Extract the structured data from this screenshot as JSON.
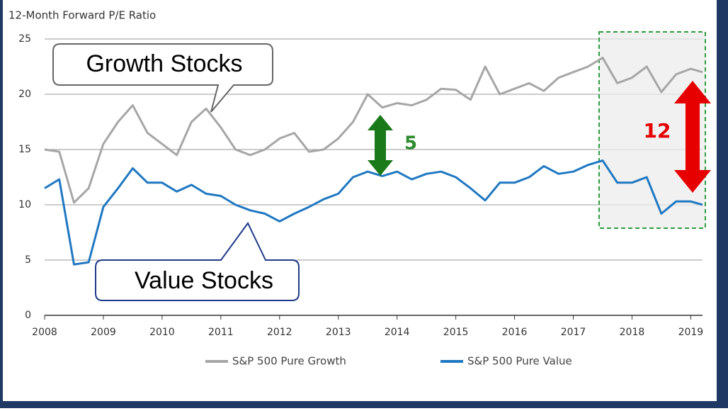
{
  "chart_data": {
    "type": "line",
    "y_axis_label": "12-Month Forward P/E Ratio",
    "x": [
      2008,
      2008.25,
      2008.5,
      2008.75,
      2009,
      2009.25,
      2009.5,
      2009.75,
      2010,
      2010.25,
      2010.5,
      2010.75,
      2011,
      2011.25,
      2011.5,
      2011.75,
      2012,
      2012.25,
      2012.5,
      2012.75,
      2013,
      2013.25,
      2013.5,
      2013.75,
      2014,
      2014.25,
      2014.5,
      2014.75,
      2015,
      2015.25,
      2015.5,
      2015.75,
      2016,
      2016.25,
      2016.5,
      2016.75,
      2017,
      2017.25,
      2017.5,
      2017.75,
      2018,
      2018.25,
      2018.5,
      2018.75,
      2019,
      2019.2
    ],
    "series": [
      {
        "name": "S&P 500 Pure Growth",
        "color": "#a6a6a6",
        "values": [
          15,
          14.8,
          10.2,
          11.5,
          15.5,
          17.5,
          19,
          16.5,
          15.5,
          14.5,
          17.5,
          18.7,
          17,
          15,
          14.5,
          15,
          16,
          16.5,
          14.8,
          15,
          16,
          17.5,
          20,
          18.8,
          19.2,
          19,
          19.5,
          20.5,
          20.4,
          19.5,
          22.5,
          20,
          20.5,
          21,
          20.3,
          21.5,
          22,
          22.5,
          23.3,
          21,
          21.5,
          22.5,
          20.2,
          21.8,
          22.3,
          22
        ]
      },
      {
        "name": "S&P 500 Pure Value",
        "color": "#1f78c1",
        "values": [
          11.5,
          12.3,
          4.6,
          4.8,
          9.8,
          11.5,
          13.3,
          12,
          12,
          11.2,
          11.8,
          11,
          10.8,
          10,
          9.5,
          9.2,
          8.5,
          9.2,
          9.8,
          10.5,
          11,
          12.5,
          13,
          12.6,
          13,
          12.3,
          12.8,
          13,
          12.5,
          11.5,
          10.4,
          12,
          12,
          12.5,
          13.5,
          12.8,
          13,
          13.6,
          14,
          12,
          12,
          12.5,
          9.2,
          10.3,
          10.3,
          10
        ]
      }
    ],
    "xlim": [
      2008,
      2019.2
    ],
    "xticks": [
      2008,
      2009,
      2010,
      2011,
      2012,
      2013,
      2014,
      2015,
      2016,
      2017,
      2018,
      2019
    ],
    "ylim": [
      0,
      25
    ],
    "yticks": [
      0,
      5,
      10,
      15,
      20,
      25
    ],
    "grid": true,
    "annotations": [
      "Growth Stocks",
      "Value Stocks",
      "5",
      "12"
    ]
  }
}
